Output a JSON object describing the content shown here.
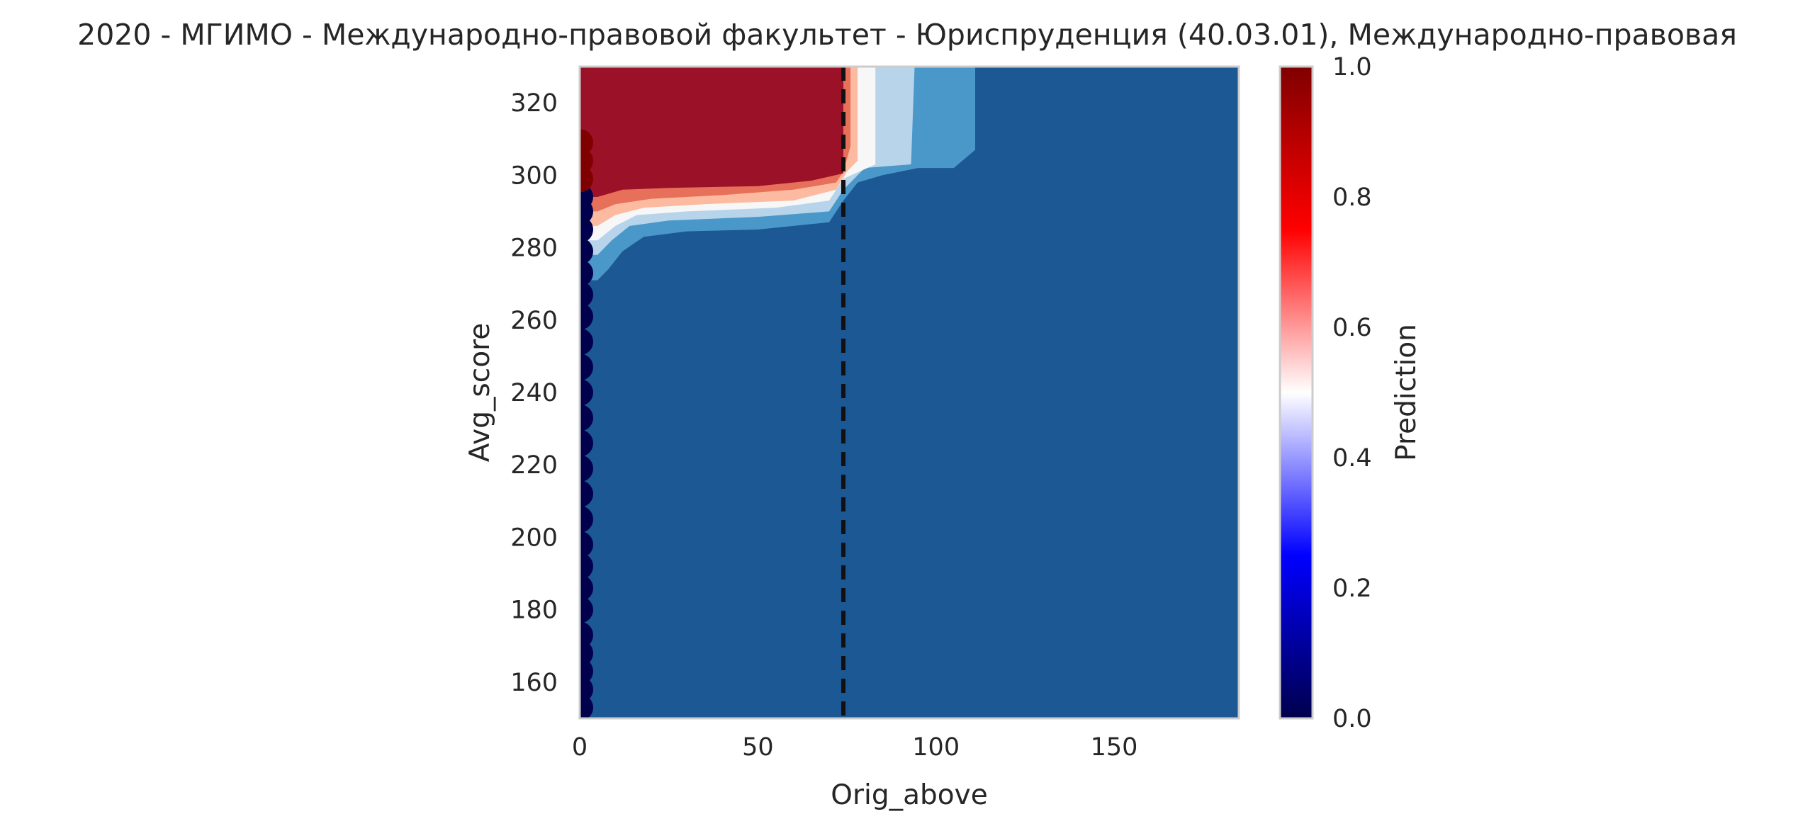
{
  "chart_data": {
    "type": "heatmap",
    "title": "2020 - МГИМО - Международно-правовой факультет - Юриспруденция (40.03.01), Международно-правовая",
    "xlabel": "Orig_above",
    "ylabel": "Avg_score",
    "xlim": [
      0,
      185
    ],
    "ylim": [
      150,
      330
    ],
    "xticks": [
      "0",
      "50",
      "100",
      "150"
    ],
    "yticks": [
      "160",
      "180",
      "200",
      "220",
      "240",
      "260",
      "280",
      "300",
      "320"
    ],
    "colorbar": {
      "label": "Prediction",
      "colormap": "seismic",
      "range": [
        0.0,
        1.0
      ],
      "ticks": [
        "0.0",
        "0.2",
        "0.4",
        "0.6",
        "0.8",
        "1.0"
      ]
    },
    "grid": false,
    "threshold_line": {
      "x": 74,
      "style": "dashed",
      "color": "#111111"
    },
    "contour_levels": [
      {
        "prediction": 0.1,
        "color": "#1c5894"
      },
      {
        "prediction": 0.3,
        "color": "#4a98c9"
      },
      {
        "prediction": 0.4,
        "color": "#b7d4ea"
      },
      {
        "prediction": 0.5,
        "color": "#f7f7f7"
      },
      {
        "prediction": 0.6,
        "color": "#fcbba1"
      },
      {
        "prediction": 0.7,
        "color": "#e7705a"
      },
      {
        "prediction": 0.9,
        "color": "#9b1228"
      }
    ],
    "contour_boundaries": [
      {
        "level": 0.3,
        "points": [
          [
            0,
            271
          ],
          [
            5,
            271
          ],
          [
            8,
            274
          ],
          [
            12,
            279
          ],
          [
            18,
            283
          ],
          [
            30,
            284.5
          ],
          [
            50,
            285
          ],
          [
            70,
            287
          ],
          [
            74,
            293
          ],
          [
            78,
            298
          ],
          [
            85,
            300
          ],
          [
            95,
            302
          ],
          [
            105,
            302
          ],
          [
            111,
            307
          ],
          [
            111,
            330
          ]
        ]
      },
      {
        "level": 0.4,
        "points": [
          [
            0,
            278
          ],
          [
            5,
            278
          ],
          [
            9,
            282
          ],
          [
            14,
            286
          ],
          [
            25,
            287.5
          ],
          [
            50,
            288.5
          ],
          [
            70,
            290
          ],
          [
            74,
            296
          ],
          [
            80,
            302
          ],
          [
            93,
            303
          ],
          [
            94,
            330
          ]
        ]
      },
      {
        "level": 0.5,
        "points": [
          [
            0,
            282
          ],
          [
            5,
            282
          ],
          [
            10,
            286
          ],
          [
            16,
            289
          ],
          [
            30,
            290
          ],
          [
            55,
            291
          ],
          [
            70,
            293
          ],
          [
            74,
            299
          ],
          [
            83,
            303
          ],
          [
            83,
            330
          ]
        ]
      },
      {
        "level": 0.6,
        "points": [
          [
            0,
            286
          ],
          [
            5,
            286
          ],
          [
            10,
            289
          ],
          [
            18,
            291
          ],
          [
            35,
            292
          ],
          [
            60,
            293
          ],
          [
            72,
            296
          ],
          [
            75,
            301
          ],
          [
            78,
            304
          ],
          [
            78,
            330
          ]
        ]
      },
      {
        "level": 0.7,
        "points": [
          [
            0,
            290
          ],
          [
            5,
            290
          ],
          [
            10,
            292
          ],
          [
            20,
            293.5
          ],
          [
            40,
            294.5
          ],
          [
            60,
            296
          ],
          [
            72,
            298
          ],
          [
            74,
            301
          ],
          [
            76,
            308
          ],
          [
            76,
            330
          ]
        ]
      },
      {
        "level": 0.9,
        "points": [
          [
            0,
            294
          ],
          [
            5,
            294
          ],
          [
            12,
            296
          ],
          [
            25,
            296.5
          ],
          [
            50,
            297
          ],
          [
            65,
            298.5
          ],
          [
            74,
            300.5
          ],
          [
            74,
            330
          ]
        ]
      }
    ],
    "scatter_points": [
      {
        "x": 0,
        "y": 153,
        "prediction": 0.0
      },
      {
        "x": 0,
        "y": 158,
        "prediction": 0.0
      },
      {
        "x": 0,
        "y": 163,
        "prediction": 0.0
      },
      {
        "x": 0,
        "y": 168,
        "prediction": 0.0
      },
      {
        "x": 0,
        "y": 173,
        "prediction": 0.0
      },
      {
        "x": 0,
        "y": 180,
        "prediction": 0.0
      },
      {
        "x": 0,
        "y": 186,
        "prediction": 0.0
      },
      {
        "x": 0,
        "y": 192,
        "prediction": 0.0
      },
      {
        "x": 0,
        "y": 198,
        "prediction": 0.0
      },
      {
        "x": 0,
        "y": 205,
        "prediction": 0.0
      },
      {
        "x": 0,
        "y": 212,
        "prediction": 0.0
      },
      {
        "x": 0,
        "y": 219,
        "prediction": 0.0
      },
      {
        "x": 0,
        "y": 226,
        "prediction": 0.0
      },
      {
        "x": 0,
        "y": 233,
        "prediction": 0.0
      },
      {
        "x": 0,
        "y": 240,
        "prediction": 0.0
      },
      {
        "x": 0,
        "y": 247,
        "prediction": 0.0
      },
      {
        "x": 0,
        "y": 254,
        "prediction": 0.0
      },
      {
        "x": 0,
        "y": 261,
        "prediction": 0.0
      },
      {
        "x": 0,
        "y": 267,
        "prediction": 0.0
      },
      {
        "x": 0,
        "y": 273,
        "prediction": 0.0
      },
      {
        "x": 0,
        "y": 279,
        "prediction": 0.0
      },
      {
        "x": 0,
        "y": 285,
        "prediction": 0.0
      },
      {
        "x": 0,
        "y": 290,
        "prediction": 0.0
      },
      {
        "x": 0,
        "y": 294,
        "prediction": 0.0
      },
      {
        "x": 0,
        "y": 299,
        "prediction": 1.0
      },
      {
        "x": 0,
        "y": 304,
        "prediction": 1.0
      },
      {
        "x": 0,
        "y": 309,
        "prediction": 1.0
      }
    ]
  }
}
